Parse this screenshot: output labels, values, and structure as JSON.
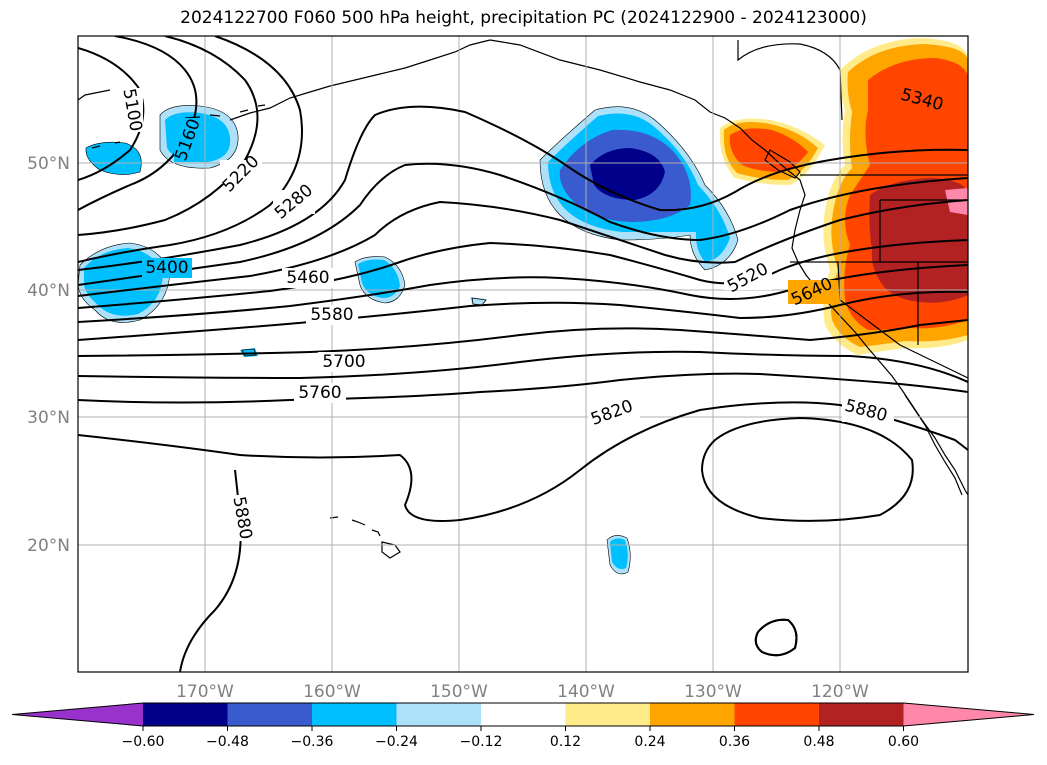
{
  "title": "2024122700 F060 500 hPa height, precipitation PC (2024122900 - 2024123000)",
  "lat_labels": [
    "50°N",
    "40°N",
    "30°N",
    "20°N"
  ],
  "lon_labels": [
    "170°W",
    "160°W",
    "150°W",
    "140°W",
    "130°W",
    "120°W"
  ],
  "contour_labels": [
    "5100",
    "5160",
    "5220",
    "5280",
    "5400",
    "5460",
    "5580",
    "5700",
    "5760",
    "5880",
    "5820",
    "5520",
    "5640",
    "5340",
    "5880"
  ],
  "colorbar": {
    "ticks": [
      "−0.60",
      "−0.48",
      "−0.36",
      "−0.24",
      "−0.12",
      "0.12",
      "0.24",
      "0.36",
      "0.48",
      "0.60"
    ],
    "colors": [
      "#9932CC",
      "#00008B",
      "#3A5BCD",
      "#00BFFF",
      "#ADE1FA",
      "#FFFFFF",
      "#FFEB8A",
      "#FFA500",
      "#FF4500",
      "#B22222",
      "#FF88AA"
    ]
  },
  "chart_data": {
    "type": "map",
    "region": "North Pacific",
    "lat_range": [
      10,
      60
    ],
    "lon_range": [
      -180,
      -110
    ],
    "contour_interval": 60,
    "colorbar_levels": [
      -0.6,
      -0.48,
      -0.36,
      -0.24,
      -0.12,
      0.12,
      0.24,
      0.36,
      0.48,
      0.6
    ]
  }
}
